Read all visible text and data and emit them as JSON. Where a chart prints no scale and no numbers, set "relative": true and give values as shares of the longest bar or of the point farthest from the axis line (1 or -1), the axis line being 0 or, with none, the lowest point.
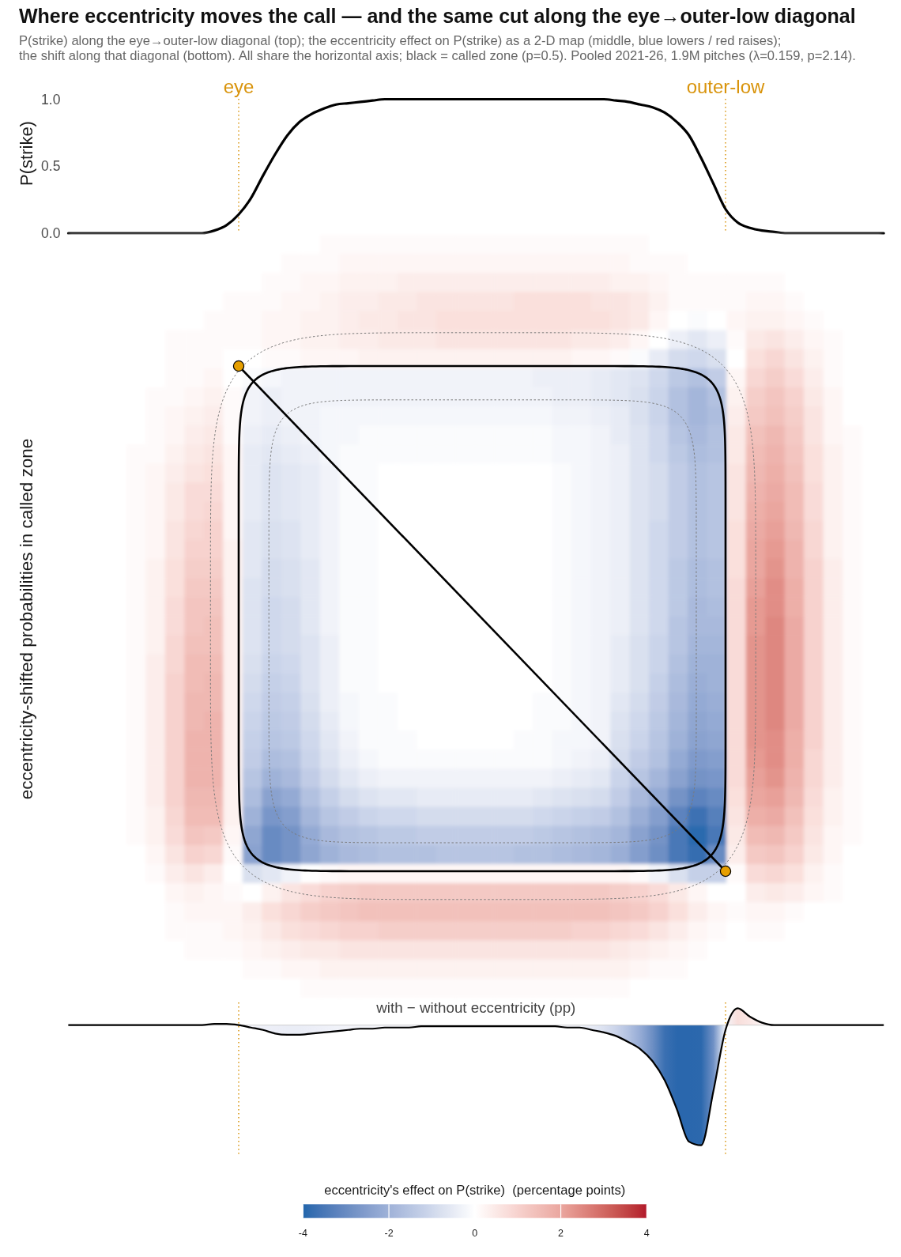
{
  "chart_data": [
    {
      "type": "line",
      "title": "Where eccentricity moves the call — and the same cut along the eye→outer-low diagonal",
      "subtitle": "P(strike) along the eye→outer-low diagonal (top); the eccentricity effect on P(strike) as a 2-D map (middle, blue lowers / red raises);\nthe shift along that diagonal (bottom). All share the horizontal axis; black = called zone (p=0.5). Pooled 2021-26, 1.9M pitches (λ=0.159, p=2.14).",
      "ylabel": "P(strike)",
      "categories": [
        null,
        null,
        null,
        null,
        null,
        null,
        null,
        null,
        null,
        null,
        null,
        null,
        null,
        null,
        "eye",
        null,
        null,
        null,
        null,
        null,
        null,
        null,
        null,
        null,
        null,
        null,
        null,
        null,
        null,
        null,
        null,
        null,
        null,
        null,
        null,
        null,
        null,
        null,
        null,
        null,
        null,
        null,
        null,
        null,
        null,
        null,
        null,
        null,
        null,
        null,
        null,
        null,
        null,
        null,
        "outer-low",
        null,
        null,
        null,
        null,
        null,
        null,
        null,
        null,
        null,
        null,
        null,
        null,
        null
      ],
      "values": [
        0,
        0,
        0,
        0,
        0,
        0,
        0,
        0,
        0,
        0,
        0,
        0,
        0.02,
        0.06,
        0.14,
        0.26,
        0.43,
        0.59,
        0.73,
        0.83,
        0.89,
        0.93,
        0.96,
        0.97,
        0.98,
        0.99,
        1,
        1,
        1,
        1,
        1,
        1,
        1,
        1,
        1,
        1,
        1,
        1,
        1,
        1,
        1,
        1,
        1,
        1,
        1,
        0.99,
        0.98,
        0.96,
        0.94,
        0.9,
        0.83,
        0.73,
        0.56,
        0.37,
        0.18,
        0.08,
        0.04,
        0.02,
        0.01,
        0,
        0,
        0,
        0,
        0,
        0,
        0,
        0,
        0
      ],
      "color": "#000000",
      "ylim": [
        0,
        1
      ],
      "yticks": [
        {
          "value": 0,
          "label": "0.0"
        },
        0.5,
        {
          "value": 1,
          "label": "1.0"
        }
      ],
      "ref_lines": [
        {
          "axis": "x",
          "value": "eye",
          "color": "#d9940c",
          "line_style": "dotted"
        },
        {
          "axis": "x",
          "value": "outer-low",
          "color": "#d9940c",
          "line_style": "dotted"
        }
      ]
    },
    {
      "type": "heatmap",
      "ylabel": "eccentricity-shifted probabilities in called zone",
      "categories": [
        null,
        null,
        null,
        null,
        null,
        null,
        null,
        null,
        null,
        null,
        null,
        null,
        null,
        null,
        null,
        null,
        null,
        null,
        null,
        null,
        null,
        null,
        null,
        null,
        null,
        null,
        null,
        null,
        null,
        null,
        null,
        null,
        null,
        null,
        null,
        null,
        null,
        null,
        null,
        null,
        null,
        null
      ],
      "y_categories": [
        null,
        null,
        null,
        null,
        null,
        null,
        null,
        null,
        null,
        null,
        null,
        null,
        null,
        null,
        null,
        null,
        null,
        null,
        null,
        null,
        null,
        null,
        null,
        null,
        null,
        null,
        null,
        null,
        null,
        null,
        null,
        null,
        null,
        null,
        null,
        null,
        null,
        null,
        null,
        null
      ],
      "cells": [
        [
          0,
          0,
          0,
          0,
          0,
          0,
          0,
          0,
          0,
          0,
          0,
          0,
          0,
          0.1,
          0.1,
          0.1,
          0.1,
          0.1,
          0.1,
          0.1,
          0.1,
          0.1,
          0.1,
          0.1,
          0.1,
          0.1,
          0.1,
          0.1,
          0.1,
          0.1,
          0,
          0,
          0,
          0,
          0,
          0,
          0,
          0,
          0,
          0,
          0,
          0
        ],
        [
          0,
          0,
          0,
          0,
          0,
          0,
          0,
          0,
          0,
          0,
          0,
          0.1,
          0.1,
          0.1,
          0.2,
          0.2,
          0.2,
          0.2,
          0.2,
          0.2,
          0.2,
          0.2,
          0.2,
          0.2,
          0.2,
          0.2,
          0.2,
          0.2,
          0.2,
          0.1,
          0.1,
          0.1,
          0,
          0,
          0,
          0,
          0,
          0,
          0,
          0,
          0,
          0
        ],
        [
          0,
          0,
          0,
          0,
          0,
          0,
          0,
          0,
          0,
          0,
          0.1,
          0.1,
          0.2,
          0.2,
          0.3,
          0.3,
          0.3,
          0.4,
          0.4,
          0.4,
          0.4,
          0.4,
          0.4,
          0.4,
          0.4,
          0.4,
          0.4,
          0.4,
          0.3,
          0.3,
          0.2,
          0.1,
          0.1,
          0.1,
          0.1,
          0.1,
          0.1,
          0,
          0,
          0,
          0,
          0
        ],
        [
          0,
          0,
          0,
          0,
          0,
          0,
          0,
          0,
          0.1,
          0.1,
          0.1,
          0.2,
          0.2,
          0.3,
          0.4,
          0.4,
          0.5,
          0.5,
          0.6,
          0.6,
          0.6,
          0.6,
          0.6,
          0.7,
          0.7,
          0.7,
          0.7,
          0.6,
          0.6,
          0.5,
          0.3,
          0.1,
          0.1,
          0.1,
          0.1,
          0.2,
          0.2,
          0.1,
          0,
          0,
          0,
          0
        ],
        [
          0,
          0,
          0,
          0,
          0,
          0,
          0,
          0.1,
          0.1,
          0.1,
          0.2,
          0.2,
          0.3,
          0.3,
          0.4,
          0.5,
          0.5,
          0.6,
          0.6,
          0.7,
          0.7,
          0.7,
          0.7,
          0.7,
          0.7,
          0.7,
          0.7,
          0.7,
          0.6,
          0.5,
          0.2,
          0,
          -0.1,
          0,
          0.2,
          0.3,
          0.3,
          0.2,
          0.1,
          0,
          0,
          0
        ],
        [
          0,
          0,
          0,
          0,
          0,
          0.1,
          0.1,
          0.1,
          0.1,
          0.1,
          0.2,
          0.2,
          0.3,
          0.3,
          0.4,
          0.4,
          0.5,
          0.5,
          0.5,
          0.6,
          0.6,
          0.6,
          0.6,
          0.6,
          0.6,
          0.6,
          0.5,
          0.5,
          0.4,
          0.2,
          0,
          -0.4,
          -0.6,
          -0.4,
          0.1,
          0.5,
          0.6,
          0.4,
          0.2,
          0.1,
          0,
          0
        ],
        [
          0,
          0,
          0,
          0,
          0,
          0.1,
          0.1,
          0.1,
          0,
          0,
          0.1,
          0.1,
          0.2,
          0.2,
          0.2,
          0.3,
          0.3,
          0.3,
          0.3,
          0.3,
          0.3,
          0.3,
          0.3,
          0.3,
          0.3,
          0.3,
          0.2,
          0.2,
          0.1,
          -0.1,
          -0.5,
          -0.9,
          -1,
          -0.8,
          0,
          0.7,
          0.9,
          0.6,
          0.3,
          0.1,
          0,
          0
        ],
        [
          0,
          0,
          0,
          0,
          0,
          0.1,
          0.1,
          0.2,
          0,
          -0.1,
          -0.2,
          -0.3,
          -0.3,
          -0.3,
          -0.3,
          -0.3,
          -0.3,
          -0.3,
          -0.3,
          -0.3,
          -0.3,
          -0.3,
          -0.3,
          -0.3,
          -0.4,
          -0.4,
          -0.4,
          -0.5,
          -0.6,
          -0.7,
          -1,
          -1.4,
          -1.6,
          -1.3,
          0.2,
          0.9,
          1.1,
          0.8,
          0.4,
          0.1,
          0,
          0
        ],
        [
          0,
          0,
          0,
          0,
          0.1,
          0.1,
          0.2,
          0.3,
          0.1,
          -0.3,
          -0.4,
          -0.3,
          -0.3,
          -0.3,
          -0.3,
          -0.3,
          -0.3,
          -0.3,
          -0.3,
          -0.3,
          -0.3,
          -0.3,
          -0.3,
          -0.3,
          -0.3,
          -0.4,
          -0.4,
          -0.5,
          -0.6,
          -0.8,
          -1.1,
          -1.6,
          -1.9,
          -1.6,
          0.3,
          1.1,
          1.3,
          1,
          0.5,
          0.2,
          0,
          0
        ],
        [
          0,
          0,
          0,
          0,
          0.1,
          0.2,
          0.3,
          0.4,
          0.1,
          -0.3,
          -0.4,
          -0.3,
          -0.3,
          -0.2,
          -0.2,
          -0.2,
          -0.2,
          -0.2,
          -0.2,
          -0.2,
          -0.2,
          -0.2,
          -0.2,
          -0.2,
          -0.2,
          -0.3,
          -0.3,
          -0.4,
          -0.5,
          -0.8,
          -1.1,
          -1.6,
          -1.9,
          -1.7,
          0.4,
          1.2,
          1.4,
          1.1,
          0.6,
          0.2,
          0,
          0
        ],
        [
          0,
          0,
          0,
          0,
          0.1,
          0.2,
          0.4,
          0.5,
          0.1,
          -0.4,
          -0.5,
          -0.4,
          -0.3,
          -0.2,
          -0.2,
          -0.1,
          -0.1,
          -0.1,
          -0.1,
          -0.1,
          -0.1,
          -0.1,
          -0.1,
          -0.1,
          -0.1,
          -0.2,
          -0.2,
          -0.3,
          -0.5,
          -0.7,
          -1,
          -1.5,
          -1.8,
          -1.6,
          0.5,
          1.4,
          1.6,
          1.2,
          0.6,
          0.2,
          0.1,
          0
        ],
        [
          0,
          0,
          0,
          0.1,
          0.1,
          0.3,
          0.5,
          0.6,
          0.2,
          -0.5,
          -0.6,
          -0.5,
          -0.4,
          -0.2,
          -0.1,
          -0.1,
          -0.1,
          -0.1,
          -0.1,
          -0.1,
          -0.1,
          -0.1,
          -0.1,
          -0.1,
          -0.1,
          -0.2,
          -0.2,
          -0.3,
          -0.4,
          -0.7,
          -1,
          -1.4,
          -1.7,
          -1.6,
          0.5,
          1.5,
          1.7,
          1.3,
          0.7,
          0.3,
          0.1,
          0
        ],
        [
          0,
          0,
          0,
          0.1,
          0.2,
          0.4,
          0.6,
          0.7,
          0.2,
          -0.5,
          -0.7,
          -0.6,
          -0.5,
          -0.3,
          -0.1,
          -0.1,
          0,
          0,
          0,
          0,
          0,
          0,
          0,
          0,
          0,
          -0.1,
          -0.2,
          -0.3,
          -0.4,
          -0.7,
          -0.9,
          -1.3,
          -1.6,
          -1.5,
          0.6,
          1.6,
          1.8,
          1.4,
          0.7,
          0.3,
          0.1,
          0
        ],
        [
          0,
          0,
          0,
          0.1,
          0.2,
          0.5,
          0.8,
          0.8,
          0.2,
          -0.5,
          -0.7,
          -0.6,
          -0.5,
          -0.3,
          -0.1,
          -0.1,
          0,
          0,
          0,
          0,
          0,
          0,
          0,
          0,
          0,
          -0.1,
          -0.2,
          -0.3,
          -0.4,
          -0.7,
          -0.9,
          -1.3,
          -1.6,
          -1.5,
          0.6,
          1.7,
          1.9,
          1.5,
          0.8,
          0.3,
          0.1,
          0
        ],
        [
          0,
          0,
          0,
          0.1,
          0.2,
          0.5,
          0.8,
          0.9,
          0.2,
          -0.5,
          -0.7,
          -0.6,
          -0.5,
          -0.3,
          -0.1,
          -0.1,
          0,
          0,
          0,
          0,
          0,
          0,
          0,
          0,
          0,
          -0.1,
          -0.2,
          -0.3,
          -0.4,
          -0.7,
          -0.9,
          -1.3,
          -1.6,
          -1.5,
          0.6,
          1.8,
          2,
          1.5,
          0.8,
          0.3,
          0.1,
          0
        ],
        [
          0,
          0,
          0,
          0.1,
          0.2,
          0.6,
          0.9,
          1,
          0.2,
          -0.6,
          -0.8,
          -0.7,
          -0.5,
          -0.3,
          -0.1,
          -0.1,
          0,
          0,
          0,
          0,
          0,
          0,
          0,
          0,
          0,
          -0.1,
          -0.2,
          -0.3,
          -0.4,
          -0.7,
          -1,
          -1.3,
          -1.6,
          -1.5,
          0.7,
          1.9,
          2.1,
          1.6,
          0.9,
          0.3,
          0.1,
          0
        ],
        [
          0,
          0,
          0,
          0.1,
          0.2,
          0.6,
          1,
          1,
          0.3,
          -0.6,
          -0.8,
          -0.7,
          -0.5,
          -0.3,
          -0.1,
          -0.1,
          0,
          0,
          0,
          0,
          0,
          0,
          0,
          0,
          0,
          -0.1,
          -0.2,
          -0.3,
          -0.4,
          -0.7,
          -1,
          -1.3,
          -1.6,
          -1.5,
          0.7,
          2,
          2.2,
          1.7,
          0.9,
          0.3,
          0.1,
          0
        ],
        [
          0,
          0,
          0,
          0.1,
          0.3,
          0.7,
          1.1,
          1.1,
          0.3,
          -0.6,
          -0.9,
          -0.8,
          -0.6,
          -0.3,
          -0.1,
          -0.1,
          0,
          0,
          0,
          0,
          0,
          0,
          0,
          0,
          0,
          -0.1,
          -0.2,
          -0.3,
          -0.4,
          -0.7,
          -1,
          -1.4,
          -1.7,
          -1.6,
          0.7,
          2,
          2.3,
          1.7,
          1,
          0.4,
          0.1,
          0
        ],
        [
          0,
          0,
          0,
          0.1,
          0.3,
          0.7,
          1.2,
          1.2,
          0.3,
          -0.7,
          -0.9,
          -0.8,
          -0.6,
          -0.3,
          -0.1,
          -0.1,
          0,
          0,
          0,
          0,
          0,
          0,
          0,
          0,
          0,
          -0.1,
          -0.2,
          -0.3,
          -0.4,
          -0.7,
          -1,
          -1.4,
          -1.7,
          -1.6,
          0.8,
          2.1,
          2.4,
          1.8,
          1,
          0.4,
          0.1,
          0
        ],
        [
          0,
          0,
          0,
          0.1,
          0.3,
          0.8,
          1.3,
          1.3,
          0.3,
          -0.7,
          -1,
          -0.9,
          -0.6,
          -0.3,
          -0.1,
          -0.1,
          0,
          0,
          0,
          0,
          0,
          0,
          0,
          0,
          0,
          -0.1,
          -0.2,
          -0.3,
          -0.4,
          -0.7,
          -1,
          -1.4,
          -1.8,
          -1.7,
          0.8,
          2.2,
          2.4,
          1.8,
          1,
          0.4,
          0.1,
          0
        ],
        [
          0,
          0,
          0,
          0.1,
          0.3,
          0.8,
          1.3,
          1.4,
          0.3,
          -0.7,
          -1,
          -0.9,
          -0.6,
          -0.3,
          -0.1,
          -0.1,
          0,
          0,
          0,
          0,
          0,
          0,
          0,
          0,
          0,
          -0.1,
          -0.2,
          -0.3,
          -0.4,
          -0.7,
          -1,
          -1.5,
          -1.8,
          -1.8,
          0.8,
          2.2,
          2.5,
          1.9,
          1,
          0.4,
          0.1,
          0
        ],
        [
          0,
          0,
          0,
          0.1,
          0.3,
          0.9,
          1.4,
          1.4,
          0.3,
          -0.7,
          -1,
          -0.9,
          -0.7,
          -0.4,
          -0.1,
          -0.1,
          0,
          0,
          0,
          0,
          0,
          0,
          0,
          0,
          0,
          -0.1,
          -0.2,
          -0.3,
          -0.5,
          -0.8,
          -1.1,
          -1.5,
          -1.9,
          -1.9,
          0.8,
          2.3,
          2.5,
          1.9,
          1,
          0.4,
          0.1,
          0
        ],
        [
          0,
          0,
          0,
          0.1,
          0.4,
          0.9,
          1.5,
          1.5,
          0.3,
          -0.8,
          -1.1,
          -1,
          -0.7,
          -0.4,
          -0.1,
          -0.1,
          0,
          0,
          0,
          0,
          0,
          0,
          0,
          0,
          0,
          -0.1,
          -0.2,
          -0.3,
          -0.5,
          -0.8,
          -1.1,
          -1.6,
          -2,
          -2,
          0.8,
          2.3,
          2.5,
          1.9,
          1,
          0.4,
          0.1,
          0
        ],
        [
          0,
          0,
          0,
          0.1,
          0.4,
          1,
          1.5,
          1.6,
          0.3,
          -0.9,
          -1.2,
          -1.1,
          -0.7,
          -0.4,
          -0.1,
          -0.1,
          0,
          0,
          0,
          0,
          0,
          0,
          0,
          0,
          0,
          -0.1,
          -0.2,
          -0.3,
          -0.5,
          -0.8,
          -1.2,
          -1.7,
          -2.1,
          -2,
          0.8,
          2.3,
          2.5,
          1.9,
          1,
          0.4,
          0.1,
          0
        ],
        [
          0,
          0,
          0,
          0.1,
          0.4,
          1,
          1.6,
          1.6,
          0.3,
          -1,
          -1.3,
          -1.2,
          -0.8,
          -0.4,
          -0.2,
          -0.1,
          -0.1,
          0,
          0,
          0,
          0,
          0,
          0,
          0,
          -0.1,
          -0.1,
          -0.2,
          -0.3,
          -0.6,
          -0.9,
          -1.3,
          -1.8,
          -2.2,
          -2.1,
          0.8,
          2.3,
          2.5,
          1.9,
          1,
          0.4,
          0.1,
          0
        ],
        [
          0,
          0,
          0,
          0.1,
          0.4,
          1,
          1.6,
          1.7,
          0.3,
          -1.1,
          -1.4,
          -1.3,
          -0.9,
          -0.5,
          -0.2,
          -0.1,
          -0.1,
          0,
          0,
          0,
          0,
          0,
          0,
          0,
          -0.1,
          -0.1,
          -0.2,
          -0.3,
          -0.7,
          -1,
          -1.4,
          -1.9,
          -2.3,
          -2.2,
          0.8,
          2.3,
          2.5,
          1.9,
          1,
          0.4,
          0.1,
          0
        ],
        [
          0,
          0,
          0,
          0.1,
          0.4,
          1,
          1.7,
          1.7,
          0.3,
          -1.2,
          -1.5,
          -1.4,
          -1,
          -0.6,
          -0.3,
          -0.1,
          -0.1,
          -0.1,
          0,
          0,
          0,
          0,
          0,
          -0.1,
          -0.1,
          -0.2,
          -0.2,
          -0.3,
          -0.8,
          -1.1,
          -1.5,
          -2,
          -2.4,
          -2.3,
          0.8,
          2.3,
          2.4,
          1.8,
          1,
          0.4,
          0.1,
          0
        ],
        [
          0,
          0,
          0,
          0.1,
          0.4,
          1,
          1.7,
          1.7,
          0.3,
          -1.3,
          -1.7,
          -1.6,
          -1.1,
          -0.7,
          -0.4,
          -0.2,
          -0.1,
          -0.1,
          -0.1,
          -0.1,
          -0.1,
          -0.1,
          -0.1,
          -0.1,
          -0.1,
          -0.2,
          -0.3,
          -0.4,
          -0.9,
          -1.3,
          -1.6,
          -2.2,
          -2.6,
          -2.5,
          0.8,
          2.2,
          2.4,
          1.8,
          0.9,
          0.4,
          0.1,
          0
        ],
        [
          0,
          0,
          0,
          0.1,
          0.4,
          1,
          1.7,
          1.7,
          0.3,
          -1.5,
          -2,
          -1.8,
          -1.3,
          -0.9,
          -0.6,
          -0.4,
          -0.3,
          -0.3,
          -0.3,
          -0.3,
          -0.3,
          -0.3,
          -0.3,
          -0.3,
          -0.3,
          -0.4,
          -0.5,
          -0.6,
          -1.1,
          -1.5,
          -1.9,
          -2.4,
          -2.8,
          -2.7,
          0.8,
          2.1,
          2.3,
          1.7,
          0.9,
          0.4,
          0.1,
          0
        ],
        [
          0,
          0,
          0,
          0.1,
          0.4,
          1,
          1.6,
          1.6,
          0.3,
          -1.7,
          -2.4,
          -2.2,
          -1.6,
          -1.2,
          -0.9,
          -0.7,
          -0.6,
          -0.6,
          -0.5,
          -0.5,
          -0.5,
          -0.5,
          -0.5,
          -0.5,
          -0.6,
          -0.7,
          -0.8,
          -0.9,
          -1.3,
          -1.8,
          -2.2,
          -2.8,
          -3.2,
          -3,
          0.7,
          2,
          2.1,
          1.6,
          0.8,
          0.3,
          0.1,
          0
        ],
        [
          0,
          0,
          0,
          0.1,
          0.3,
          0.9,
          1.5,
          1.5,
          0.3,
          -2,
          -2.7,
          -2.5,
          -1.9,
          -1.5,
          -1.3,
          -1.1,
          -1,
          -1,
          -0.9,
          -0.9,
          -0.9,
          -0.9,
          -0.9,
          -0.9,
          -1,
          -1.1,
          -1.2,
          -1.3,
          -1.6,
          -2.1,
          -2.5,
          -3.2,
          -3.7,
          -3.3,
          0.6,
          1.8,
          1.9,
          1.4,
          0.7,
          0.3,
          0.1,
          0
        ],
        [
          0,
          0,
          0,
          0.1,
          0.3,
          0.8,
          1.3,
          1.2,
          0.2,
          -2.3,
          -3,
          -2.8,
          -2.2,
          -1.8,
          -1.6,
          -1.5,
          -1.4,
          -1.4,
          -1.3,
          -1.3,
          -1.3,
          -1.3,
          -1.3,
          -1.3,
          -1.4,
          -1.5,
          -1.6,
          -1.7,
          -1.9,
          -2.4,
          -2.8,
          -3.5,
          -3.9,
          -3.5,
          0.5,
          1.5,
          1.6,
          1.2,
          0.6,
          0.2,
          0.1,
          0
        ],
        [
          0,
          0,
          0,
          0,
          0.2,
          0.6,
          1,
          0.9,
          0.1,
          -2.4,
          -3,
          -2.8,
          -2.3,
          -2,
          -1.8,
          -1.7,
          -1.6,
          -1.6,
          -1.6,
          -1.5,
          -1.5,
          -1.5,
          -1.5,
          -1.6,
          -1.6,
          -1.7,
          -1.8,
          -1.9,
          -2.1,
          -2.5,
          -2.9,
          -3.5,
          -3.8,
          -3,
          0.4,
          1.2,
          1.3,
          1,
          0.5,
          0.2,
          0,
          0
        ],
        [
          0,
          0,
          0,
          0,
          0.1,
          0.4,
          0.6,
          0.4,
          0,
          -0.8,
          -0.6,
          -0.3,
          0,
          0.1,
          0.2,
          0.2,
          0.2,
          0.2,
          0.2,
          0.2,
          0.2,
          0.2,
          0.2,
          0.2,
          0.2,
          0.2,
          0.2,
          0.2,
          0.2,
          0.1,
          -0.3,
          -0.8,
          -1.2,
          -1.2,
          0.1,
          0.8,
          0.9,
          0.7,
          0.3,
          0.1,
          0,
          0
        ],
        [
          0,
          0,
          0,
          0,
          0,
          0.2,
          0.3,
          0.2,
          0.1,
          0,
          0.3,
          0.6,
          0.8,
          1,
          1.1,
          1.2,
          1.2,
          1.2,
          1.2,
          1.2,
          1.2,
          1.2,
          1.2,
          1.2,
          1.2,
          1.2,
          1.2,
          1.2,
          1.1,
          1,
          0.8,
          0.5,
          0.2,
          0,
          0,
          0.4,
          0.5,
          0.4,
          0.2,
          0.1,
          0,
          0
        ],
        [
          0,
          0,
          0,
          0,
          0,
          0.1,
          0.2,
          0.2,
          0.2,
          0.4,
          0.7,
          0.9,
          1.1,
          1.2,
          1.3,
          1.4,
          1.4,
          1.4,
          1.4,
          1.4,
          1.4,
          1.4,
          1.4,
          1.4,
          1.4,
          1.4,
          1.4,
          1.4,
          1.3,
          1.2,
          1,
          0.7,
          0.4,
          0.2,
          0.1,
          0.2,
          0.2,
          0.1,
          0,
          0,
          0,
          0
        ],
        [
          0,
          0,
          0,
          0,
          0,
          0.1,
          0.1,
          0.1,
          0.2,
          0.3,
          0.5,
          0.7,
          0.8,
          0.9,
          1,
          1,
          1.1,
          1.1,
          1.1,
          1.1,
          1.1,
          1.1,
          1.1,
          1.1,
          1.1,
          1.1,
          1,
          1,
          0.9,
          0.8,
          0.6,
          0.4,
          0.2,
          0.1,
          0,
          0.1,
          0.1,
          0,
          0,
          0,
          0,
          0
        ],
        [
          0,
          0,
          0,
          0,
          0,
          0,
          0.1,
          0.1,
          0.1,
          0.2,
          0.3,
          0.4,
          0.5,
          0.5,
          0.6,
          0.6,
          0.6,
          0.6,
          0.6,
          0.6,
          0.6,
          0.6,
          0.6,
          0.6,
          0.6,
          0.6,
          0.6,
          0.6,
          0.5,
          0.4,
          0.3,
          0.2,
          0.1,
          0,
          0,
          0,
          0,
          0,
          0,
          0,
          0,
          0
        ],
        [
          0,
          0,
          0,
          0,
          0,
          0,
          0,
          0,
          0,
          0.1,
          0.1,
          0.2,
          0.2,
          0.3,
          0.3,
          0.3,
          0.3,
          0.3,
          0.3,
          0.3,
          0.3,
          0.3,
          0.3,
          0.3,
          0.3,
          0.3,
          0.3,
          0.3,
          0.3,
          0.2,
          0.1,
          0.1,
          0,
          0,
          0,
          0,
          0,
          0,
          0,
          0,
          0,
          0
        ],
        [
          0,
          0,
          0,
          0,
          0,
          0,
          0,
          0,
          0,
          0,
          0,
          0,
          0.1,
          0.1,
          0.1,
          0.1,
          0.1,
          0.1,
          0.1,
          0.1,
          0.1,
          0.1,
          0.1,
          0.1,
          0.1,
          0.1,
          0.1,
          0.1,
          0.1,
          0,
          0,
          0,
          0,
          0,
          0,
          0,
          0,
          0,
          0,
          0,
          0,
          0
        ]
      ],
      "clim": [
        -4,
        4
      ],
      "cticks": [
        -4,
        -2,
        0,
        2,
        4
      ],
      "clabel": "eccentricity's effect on P(strike)  (percentage points)",
      "tick_labels": false
    },
    {
      "type": "area",
      "title": "with − without eccentricity (pp)",
      "categories": [
        null,
        null,
        null,
        null,
        null,
        null,
        null,
        null,
        null,
        null,
        null,
        null,
        null,
        null,
        "eye",
        null,
        null,
        null,
        null,
        null,
        null,
        null,
        null,
        null,
        null,
        null,
        null,
        null,
        null,
        null,
        null,
        null,
        null,
        null,
        null,
        null,
        null,
        null,
        null,
        null,
        null,
        null,
        null,
        null,
        null,
        null,
        null,
        null,
        null,
        null,
        null,
        null,
        null,
        null,
        "outer-low",
        null,
        null,
        null,
        null,
        null,
        null,
        null,
        null,
        null,
        null,
        null,
        null,
        null
      ],
      "values": [
        0,
        0,
        0,
        0,
        0,
        0,
        0,
        0,
        0,
        0,
        0,
        0,
        0.01,
        0.01,
        0,
        -0.02,
        -0.04,
        -0.07,
        -0.08,
        -0.08,
        -0.07,
        -0.06,
        -0.05,
        -0.04,
        -0.03,
        -0.03,
        -0.02,
        -0.02,
        -0.02,
        -0.01,
        -0.01,
        -0.01,
        -0.01,
        -0.01,
        -0.01,
        -0.01,
        -0.01,
        -0.01,
        -0.01,
        -0.01,
        -0.01,
        -0.02,
        -0.02,
        -0.04,
        -0.06,
        -0.09,
        -0.14,
        -0.2,
        -0.3,
        -0.46,
        -0.7,
        -0.97,
        -1,
        -0.55,
        -0.04,
        0.14,
        0.07,
        0.02,
        0,
        0,
        0,
        0,
        0,
        0,
        0,
        0,
        0,
        0
      ],
      "colors": [
        "#ffffff",
        "#ffffff",
        "#ffffff",
        "#ffffff",
        "#ffffff",
        "#ffffff",
        "#ffffff",
        "#ffffff",
        "#ffffff",
        "#ffffff",
        "#ffffff",
        "#ffffff",
        "#ffffff",
        "#ffffff",
        "#ffffff",
        "#f3f4fa",
        "#eef0f8",
        "#eceef7",
        "#eaedf6",
        "#eaedf6",
        "#eceef7",
        "#eef0f8",
        "#f0f2f9",
        "#f2f3f9",
        "#f4f5fa",
        "#f4f5fa",
        "#f6f7fb",
        "#f6f7fb",
        "#f6f7fb",
        "#f8f9fc",
        "#f8f9fc",
        "#f8f9fc",
        "#f8f9fc",
        "#f8f9fc",
        "#f8f9fc",
        "#f8f9fc",
        "#f8f9fc",
        "#f8f9fc",
        "#f8f9fc",
        "#f8f9fc",
        "#f8f9fc",
        "#f4f5fa",
        "#eff1f8",
        "#e6eaf5",
        "#dbe1f0",
        "#cbd4ea",
        "#b3c2e1",
        "#95abd5",
        "#6d8fc4",
        "#3b70b2",
        "#2a67ad",
        "#2a67ad",
        "#2c68ad",
        "#6f90c5",
        "#f5f6fb",
        "#f8dedb",
        "#fae7e5",
        "#fdf5f4",
        "#ffffff",
        "#ffffff",
        "#ffffff",
        "#ffffff",
        "#ffffff",
        "#ffffff",
        "#ffffff",
        "#ffffff",
        "#ffffff",
        "#ffffff"
      ],
      "color": "#000000",
      "relative": true,
      "tick_labels": false,
      "ref_lines": [
        {
          "axis": "x",
          "value": "eye",
          "color": "#d9940c",
          "line_style": "dotted"
        },
        {
          "axis": "x",
          "value": "outer-low",
          "color": "#d9940c",
          "line_style": "dotted"
        }
      ]
    }
  ]
}
